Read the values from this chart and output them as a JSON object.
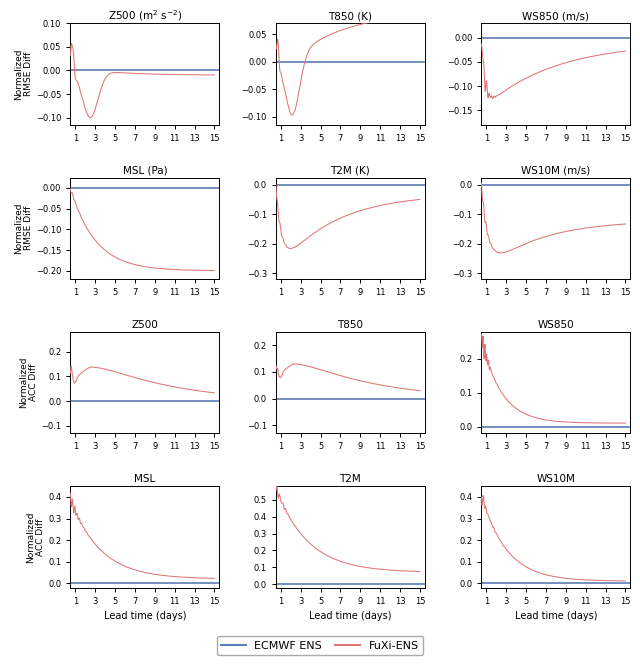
{
  "titles_row1": [
    "Z500 (m$^2$ s$^{-2}$)",
    "T850 (K)",
    "WS850 (m/s)"
  ],
  "titles_row2": [
    "MSL (Pa)",
    "T2M (K)",
    "WS10M (m/s)"
  ],
  "titles_row3": [
    "Z500",
    "T850",
    "WS850"
  ],
  "titles_row4": [
    "MSL",
    "T2M",
    "WS10M"
  ],
  "ylabel_rmse": "Normalized\nRMSE Diff",
  "ylabel_acc": "Normalized\nACC Diff",
  "xlabel": "Lead time (days)",
  "blue_color": "#5a7db5",
  "pink_color": "#e07575",
  "legend_blue": "ECMWF ENS",
  "legend_pink": "FuXi-ENS",
  "xticks": [
    1,
    3,
    5,
    7,
    9,
    11,
    13,
    15
  ],
  "ylims": [
    [
      [
        -0.115,
        0.1
      ],
      [
        -0.115,
        0.07
      ],
      [
        -0.18,
        0.03
      ]
    ],
    [
      [
        -0.22,
        0.025
      ],
      [
        -0.32,
        0.025
      ],
      [
        -0.32,
        0.025
      ]
    ],
    [
      [
        -0.13,
        0.28
      ],
      [
        -0.13,
        0.25
      ],
      [
        -0.02,
        0.28
      ]
    ],
    [
      [
        -0.02,
        0.45
      ],
      [
        -0.02,
        0.58
      ],
      [
        -0.02,
        0.45
      ]
    ]
  ]
}
